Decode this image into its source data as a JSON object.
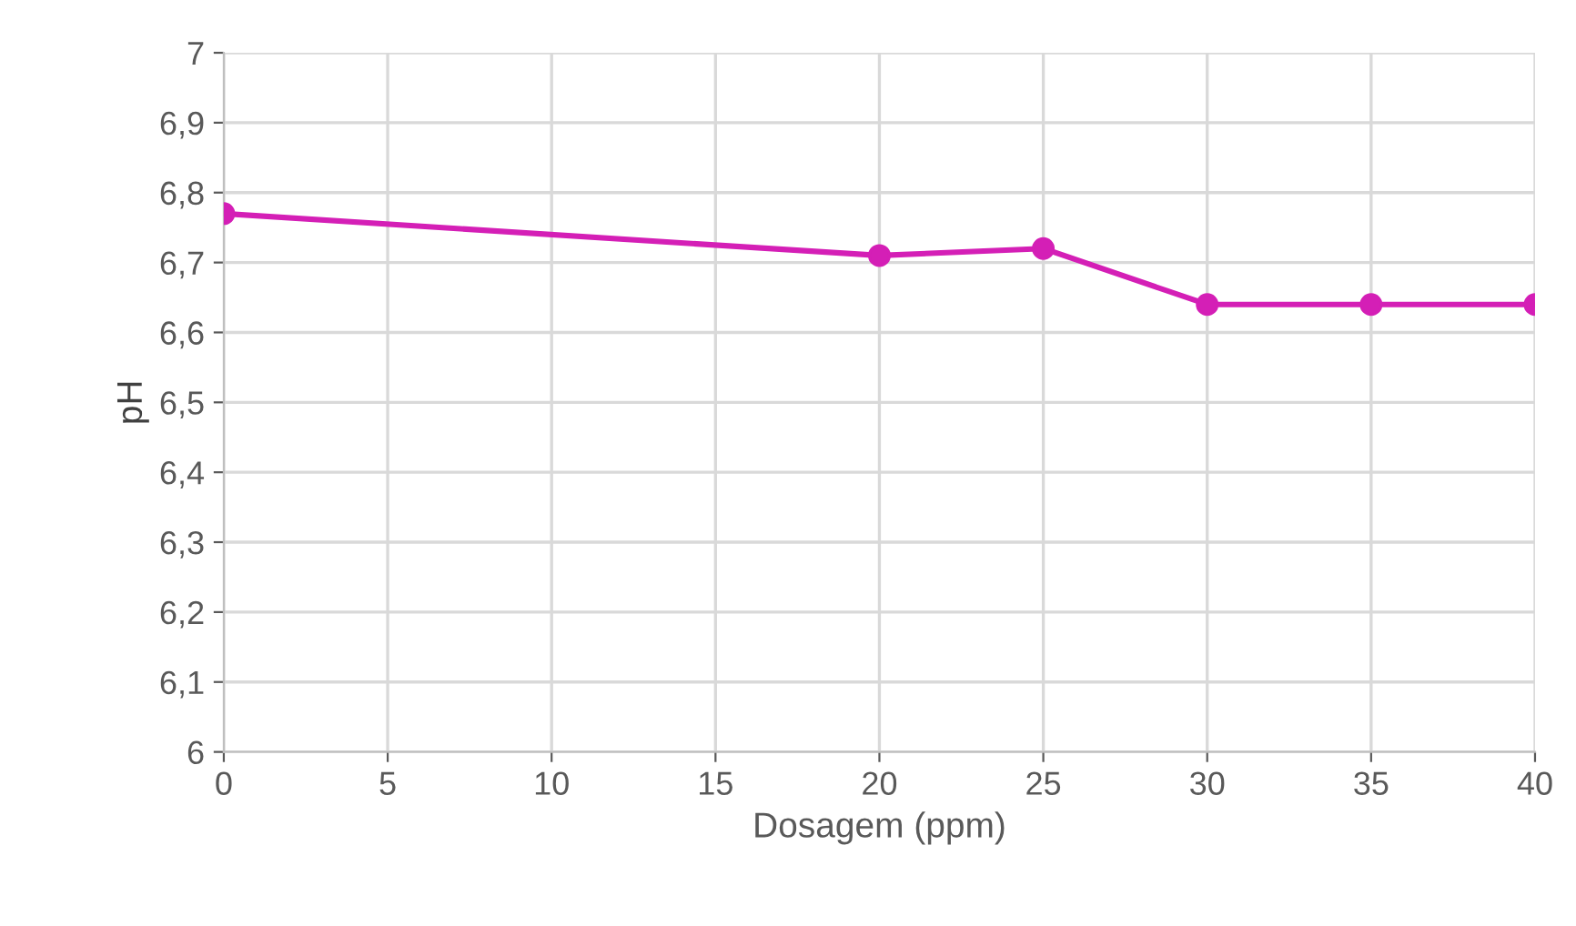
{
  "chart_data": {
    "type": "line",
    "xlabel": "Dosagem (ppm)",
    "ylabel": "pH",
    "x": [
      0,
      20,
      25,
      30,
      35,
      40
    ],
    "series": [
      {
        "color": "#d41fb6",
        "values": [
          6.77,
          6.71,
          6.72,
          6.64,
          6.64,
          6.64
        ]
      }
    ],
    "xlim": [
      0,
      40
    ],
    "xticks": [
      0,
      5,
      10,
      15,
      20,
      25,
      30,
      35,
      40
    ],
    "ylim": [
      6,
      7
    ],
    "yticks": [
      6,
      {
        "value": 6.1,
        "label": "6,1"
      },
      {
        "value": 6.2,
        "label": "6,2"
      },
      {
        "value": 6.3,
        "label": "6,3"
      },
      {
        "value": 6.4,
        "label": "6,4"
      },
      {
        "value": 6.5,
        "label": "6,5"
      },
      {
        "value": 6.6,
        "label": "6,6"
      },
      {
        "value": 6.7,
        "label": "6,7"
      },
      {
        "value": 6.8,
        "label": "6,8"
      },
      {
        "value": 6.9,
        "label": "6,9"
      },
      7
    ],
    "grid": true,
    "marker": "circle",
    "line_style": "solid",
    "legend": false
  }
}
